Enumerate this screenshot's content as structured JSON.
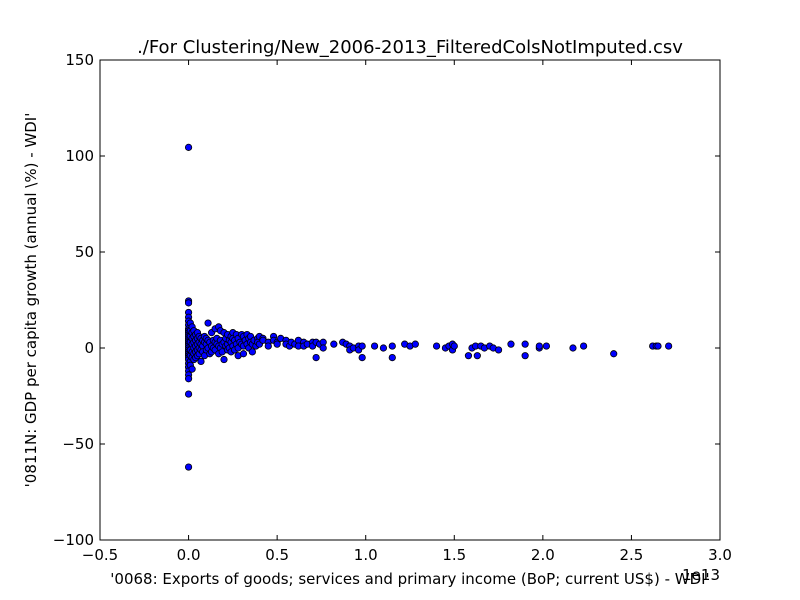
{
  "chart_data": {
    "type": "scatter",
    "title": "./For Clustering/New_2006-2013_FilteredColsNotImputed.csv",
    "xlabel": "'0068: Exports of goods; services and primary income  (BoP; current US$) - WDI'",
    "ylabel": "'0811N: GDP per capita growth  (annual \\%) - WDI'",
    "x_offset_label": "1e13",
    "xlim": [
      -0.5,
      3.0
    ],
    "ylim": [
      -100,
      150
    ],
    "x_ticks": [
      "−0.5",
      "0.0",
      "0.5",
      "1.0",
      "1.5",
      "2.0",
      "2.5",
      "3.0"
    ],
    "y_ticks": [
      "−100",
      "−50",
      "0",
      "50",
      "100",
      "150"
    ],
    "x_tick_values": [
      -0.5,
      0.0,
      0.5,
      1.0,
      1.5,
      2.0,
      2.5,
      3.0
    ],
    "y_tick_values": [
      -100,
      -50,
      0,
      50,
      100,
      150
    ],
    "grid": false,
    "marker_color": "#0000ff",
    "points": [
      [
        0.0,
        104.5
      ],
      [
        0.0,
        24.5
      ],
      [
        0.0,
        23.5
      ],
      [
        0.0,
        18.5
      ],
      [
        0.0,
        16
      ],
      [
        0.0,
        14
      ],
      [
        0.0,
        12
      ],
      [
        0.0,
        10
      ],
      [
        0.0,
        9
      ],
      [
        0.0,
        8
      ],
      [
        0.0,
        7
      ],
      [
        0.0,
        6
      ],
      [
        0.0,
        5
      ],
      [
        0.0,
        4
      ],
      [
        0.0,
        3
      ],
      [
        0.0,
        2
      ],
      [
        0.0,
        1
      ],
      [
        0.0,
        0
      ],
      [
        0.0,
        -1
      ],
      [
        0.0,
        -2
      ],
      [
        0.0,
        -3
      ],
      [
        0.0,
        -4
      ],
      [
        0.0,
        -5
      ],
      [
        0.0,
        -6
      ],
      [
        0.0,
        -8
      ],
      [
        0.0,
        -10
      ],
      [
        0.0,
        -12
      ],
      [
        0.0,
        -14
      ],
      [
        0.0,
        -16
      ],
      [
        0.0,
        -24
      ],
      [
        0.0,
        -62
      ],
      [
        0.01,
        13
      ],
      [
        0.01,
        9
      ],
      [
        0.01,
        6
      ],
      [
        0.01,
        3
      ],
      [
        0.01,
        -1
      ],
      [
        0.01,
        -4
      ],
      [
        0.01,
        -7
      ],
      [
        0.01,
        -9
      ],
      [
        0.02,
        11
      ],
      [
        0.02,
        8
      ],
      [
        0.02,
        5
      ],
      [
        0.02,
        2
      ],
      [
        0.02,
        -2
      ],
      [
        0.02,
        -5
      ],
      [
        0.02,
        -11
      ],
      [
        0.03,
        9
      ],
      [
        0.03,
        6
      ],
      [
        0.03,
        3
      ],
      [
        0.03,
        0
      ],
      [
        0.03,
        -3
      ],
      [
        0.03,
        -6
      ],
      [
        0.04,
        7
      ],
      [
        0.04,
        4
      ],
      [
        0.04,
        1
      ],
      [
        0.04,
        -2
      ],
      [
        0.04,
        -5
      ],
      [
        0.05,
        8
      ],
      [
        0.05,
        5
      ],
      [
        0.05,
        2
      ],
      [
        0.05,
        -1
      ],
      [
        0.05,
        -4
      ],
      [
        0.06,
        6
      ],
      [
        0.06,
        3
      ],
      [
        0.06,
        0
      ],
      [
        0.06,
        -3
      ],
      [
        0.07,
        5
      ],
      [
        0.07,
        2
      ],
      [
        0.07,
        -1
      ],
      [
        0.07,
        -7
      ],
      [
        0.08,
        4
      ],
      [
        0.08,
        1
      ],
      [
        0.08,
        -2
      ],
      [
        0.09,
        6
      ],
      [
        0.09,
        3
      ],
      [
        0.09,
        -4
      ],
      [
        0.1,
        5
      ],
      [
        0.1,
        2
      ],
      [
        0.1,
        -1
      ],
      [
        0.11,
        13
      ],
      [
        0.11,
        4
      ],
      [
        0.11,
        0
      ],
      [
        0.12,
        3
      ],
      [
        0.12,
        -3
      ],
      [
        0.13,
        8
      ],
      [
        0.13,
        1
      ],
      [
        0.13,
        -2
      ],
      [
        0.14,
        4
      ],
      [
        0.14,
        0
      ],
      [
        0.15,
        10
      ],
      [
        0.15,
        3
      ],
      [
        0.15,
        -1
      ],
      [
        0.16,
        5
      ],
      [
        0.16,
        2
      ],
      [
        0.17,
        11
      ],
      [
        0.17,
        1
      ],
      [
        0.17,
        -3
      ],
      [
        0.18,
        9
      ],
      [
        0.18,
        4
      ],
      [
        0.18,
        0
      ],
      [
        0.19,
        2
      ],
      [
        0.19,
        -2
      ],
      [
        0.2,
        8
      ],
      [
        0.2,
        3
      ],
      [
        0.2,
        -6
      ],
      [
        0.21,
        5
      ],
      [
        0.21,
        1
      ],
      [
        0.22,
        7
      ],
      [
        0.22,
        2
      ],
      [
        0.22,
        -1
      ],
      [
        0.23,
        4
      ],
      [
        0.23,
        0
      ],
      [
        0.24,
        6
      ],
      [
        0.24,
        3
      ],
      [
        0.24,
        -2
      ],
      [
        0.25,
        8
      ],
      [
        0.25,
        5
      ],
      [
        0.25,
        1
      ],
      [
        0.26,
        4
      ],
      [
        0.26,
        -1
      ],
      [
        0.27,
        7
      ],
      [
        0.27,
        2
      ],
      [
        0.28,
        5
      ],
      [
        0.28,
        0
      ],
      [
        0.28,
        -4
      ],
      [
        0.29,
        3
      ],
      [
        0.3,
        7
      ],
      [
        0.3,
        2
      ],
      [
        0.31,
        6
      ],
      [
        0.31,
        1
      ],
      [
        0.31,
        -3
      ],
      [
        0.32,
        4
      ],
      [
        0.33,
        7
      ],
      [
        0.33,
        2
      ],
      [
        0.34,
        5
      ],
      [
        0.34,
        0
      ],
      [
        0.35,
        6
      ],
      [
        0.35,
        3
      ],
      [
        0.36,
        2
      ],
      [
        0.36,
        -2
      ],
      [
        0.37,
        4
      ],
      [
        0.38,
        1
      ],
      [
        0.39,
        5
      ],
      [
        0.39,
        3
      ],
      [
        0.4,
        6
      ],
      [
        0.4,
        2
      ],
      [
        0.42,
        5
      ],
      [
        0.42,
        4
      ],
      [
        0.45,
        3
      ],
      [
        0.45,
        1
      ],
      [
        0.48,
        6
      ],
      [
        0.48,
        4
      ],
      [
        0.5,
        3
      ],
      [
        0.5,
        2
      ],
      [
        0.52,
        5
      ],
      [
        0.55,
        4
      ],
      [
        0.55,
        2
      ],
      [
        0.57,
        1
      ],
      [
        0.58,
        3
      ],
      [
        0.6,
        2
      ],
      [
        0.62,
        4
      ],
      [
        0.62,
        1
      ],
      [
        0.65,
        3
      ],
      [
        0.65,
        1
      ],
      [
        0.67,
        2
      ],
      [
        0.7,
        3
      ],
      [
        0.7,
        1
      ],
      [
        0.72,
        3
      ],
      [
        0.72,
        -5
      ],
      [
        0.74,
        2
      ],
      [
        0.76,
        3
      ],
      [
        0.76,
        0
      ],
      [
        0.82,
        2
      ],
      [
        0.87,
        3
      ],
      [
        0.89,
        2
      ],
      [
        0.91,
        1
      ],
      [
        0.91,
        -1
      ],
      [
        0.93,
        0
      ],
      [
        0.96,
        1
      ],
      [
        0.96,
        -1
      ],
      [
        0.98,
        1
      ],
      [
        0.98,
        -5
      ],
      [
        1.05,
        1
      ],
      [
        1.1,
        0
      ],
      [
        1.15,
        1
      ],
      [
        1.15,
        -5
      ],
      [
        1.22,
        2
      ],
      [
        1.25,
        1
      ],
      [
        1.28,
        2
      ],
      [
        1.4,
        1
      ],
      [
        1.45,
        0
      ],
      [
        1.47,
        1
      ],
      [
        1.49,
        2
      ],
      [
        1.49,
        -1
      ],
      [
        1.5,
        1
      ],
      [
        1.58,
        -4
      ],
      [
        1.6,
        0
      ],
      [
        1.62,
        1
      ],
      [
        1.63,
        -4
      ],
      [
        1.65,
        1
      ],
      [
        1.67,
        0
      ],
      [
        1.7,
        1
      ],
      [
        1.72,
        0
      ],
      [
        1.75,
        -1
      ],
      [
        1.82,
        2
      ],
      [
        1.9,
        2
      ],
      [
        1.9,
        -4
      ],
      [
        1.98,
        0
      ],
      [
        1.98,
        1
      ],
      [
        2.02,
        1
      ],
      [
        2.17,
        0
      ],
      [
        2.23,
        1
      ],
      [
        2.4,
        -3
      ],
      [
        2.62,
        1
      ],
      [
        2.64,
        1
      ],
      [
        2.65,
        1
      ],
      [
        2.71,
        1
      ]
    ]
  }
}
